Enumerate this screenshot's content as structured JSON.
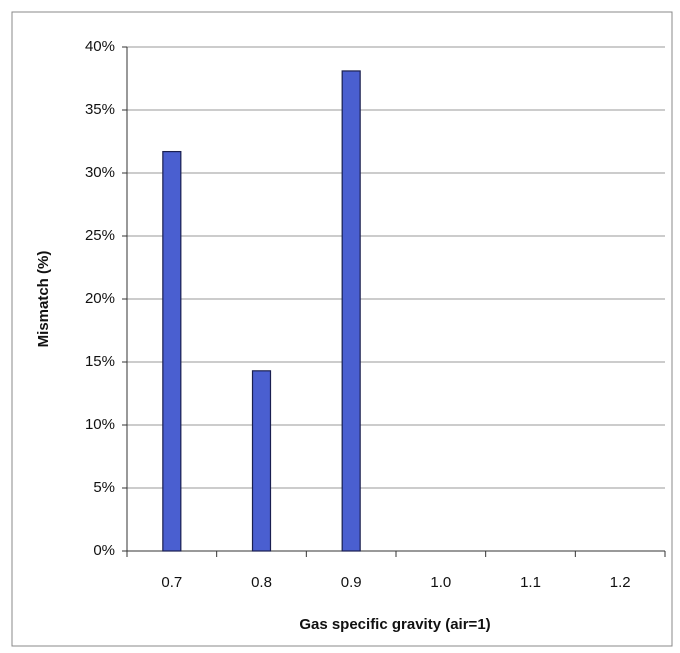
{
  "chart_data": {
    "type": "bar",
    "x_label": "Gas specific gravity (air=1)",
    "y_label": "Mismatch (%)",
    "categories": [
      "0.7",
      "0.8",
      "0.9",
      "1.0",
      "1.1",
      "1.2"
    ],
    "values": [
      31.7,
      14.3,
      38.1,
      null,
      null,
      null
    ],
    "color": "#4a5fd0",
    "ylim": [
      0,
      40
    ],
    "yticks": [
      {
        "value": 0,
        "label": "0%"
      },
      {
        "value": 5,
        "label": "5%"
      },
      {
        "value": 10,
        "label": "10%"
      },
      {
        "value": 15,
        "label": "15%"
      },
      {
        "value": 20,
        "label": "20%"
      },
      {
        "value": 25,
        "label": "25%"
      },
      {
        "value": 30,
        "label": "30%"
      },
      {
        "value": 35,
        "label": "35%"
      },
      {
        "value": 40,
        "label": "40%"
      }
    ],
    "grid": true
  }
}
